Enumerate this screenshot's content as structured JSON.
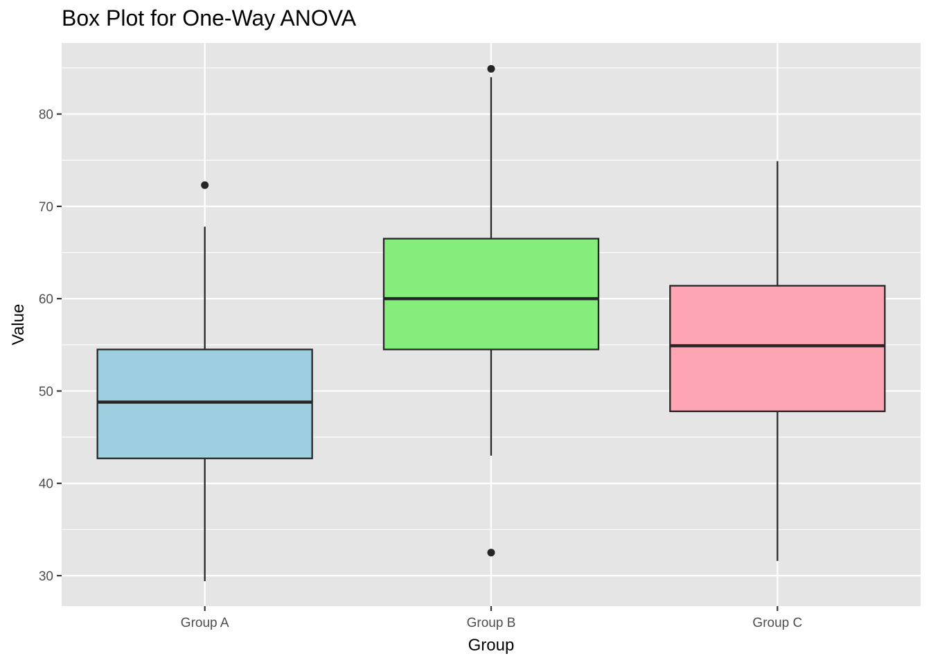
{
  "chart_data": {
    "type": "box",
    "title": "Box Plot for One-Way ANOVA",
    "xlabel": "Group",
    "ylabel": "Value",
    "ylim": [
      26.7,
      87.7
    ],
    "y_ticks": [
      30,
      40,
      50,
      60,
      70,
      80
    ],
    "y_tick_labels": [
      "30",
      "40",
      "50",
      "60",
      "70",
      "80"
    ],
    "grid": true,
    "legend": "none",
    "categories": [
      "Group A",
      "Group B",
      "Group C"
    ],
    "series": [
      {
        "category": "Group A",
        "fill": "#9ecfe0",
        "whisker_low": 29.4,
        "q1": 42.7,
        "median": 48.8,
        "q3": 54.5,
        "whisker_high": 67.8,
        "outliers": [
          72.3
        ]
      },
      {
        "category": "Group B",
        "fill": "#84ed7c",
        "whisker_low": 43.0,
        "q1": 54.5,
        "median": 60.0,
        "q3": 66.5,
        "whisker_high": 84.0,
        "outliers": [
          84.9,
          32.5
        ]
      },
      {
        "category": "Group C",
        "fill": "#fea5b3",
        "whisker_low": 31.6,
        "q1": 47.8,
        "median": 54.9,
        "q3": 61.4,
        "whisker_high": 74.9,
        "outliers": []
      }
    ]
  },
  "colors": {
    "panel_background": "#e5e5e5",
    "grid": "#ffffff",
    "box_stroke": "#262626",
    "tick_text": "#4d4d4d",
    "tick_mark": "#333333"
  }
}
